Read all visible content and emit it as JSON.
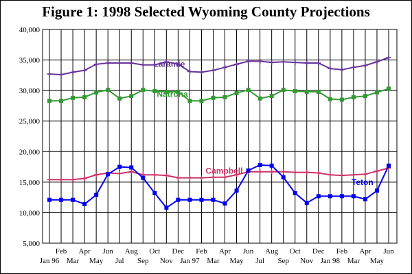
{
  "chart_data": {
    "type": "line",
    "title": "Figure 1:  1998 Selected Wyoming County Projections",
    "xlabel": "",
    "ylabel": "",
    "ylim": [
      5000,
      40000
    ],
    "yticks": [
      5000,
      10000,
      15000,
      20000,
      25000,
      30000,
      35000,
      40000
    ],
    "ytick_labels": [
      "5,000",
      "10,000",
      "15,000",
      "20,000",
      "25,000",
      "30,000",
      "35,000",
      "40,000"
    ],
    "grid": true,
    "x_tick_labels_lower": [
      "Jan 96",
      "Mar",
      "May",
      "Jul",
      "Sep",
      "Nov",
      "Jan 97",
      "Mar",
      "May",
      "Jul",
      "Sep",
      "Nov",
      "Jan 98",
      "Mar",
      "May"
    ],
    "x_tick_labels_upper": [
      "Feb",
      "Apr",
      "Jun",
      "Aug",
      "Oct",
      "Dec",
      "Feb",
      "Apr",
      "Jun",
      "Aug",
      "Oct",
      "Dec",
      "Feb",
      "Apr",
      "Jun"
    ],
    "x": [
      "Jan 96",
      "Feb",
      "Mar",
      "Apr",
      "May",
      "Jun",
      "Jul",
      "Aug",
      "Sep",
      "Oct",
      "Nov",
      "Dec",
      "Jan 97",
      "Feb",
      "Mar",
      "Apr",
      "May",
      "Jun",
      "Jul",
      "Aug",
      "Sep",
      "Oct",
      "Nov",
      "Dec",
      "Jan 98",
      "Feb",
      "Mar",
      "Apr",
      "May",
      "Jun"
    ],
    "series": [
      {
        "name": "Laramie",
        "color": "#663399",
        "marker": "plus",
        "values": [
          32700,
          32600,
          33000,
          33300,
          34300,
          34500,
          34500,
          34500,
          34200,
          34200,
          34700,
          34300,
          33100,
          33000,
          33300,
          33800,
          34300,
          34800,
          34800,
          34600,
          34700,
          34600,
          34500,
          34500,
          33600,
          33400,
          33800,
          34100,
          34700,
          35400
        ]
      },
      {
        "name": "Natrona",
        "color": "#339933",
        "marker": "square",
        "values": [
          28300,
          28300,
          28800,
          28900,
          29700,
          30100,
          28700,
          29100,
          30100,
          29900,
          29800,
          29800,
          28300,
          28300,
          28800,
          28900,
          29600,
          30100,
          28700,
          29100,
          30100,
          29900,
          29800,
          29800,
          28600,
          28500,
          28900,
          29100,
          29700,
          30300
        ]
      },
      {
        "name": "Campbell",
        "color": "#cc3366",
        "marker": "plus",
        "values": [
          15400,
          15400,
          15400,
          15600,
          16200,
          16500,
          16400,
          16700,
          16200,
          16200,
          16100,
          15700,
          15700,
          15700,
          15800,
          15800,
          16200,
          16700,
          16700,
          16700,
          16700,
          16600,
          16600,
          16500,
          16200,
          16100,
          16200,
          16300,
          16800,
          17300
        ]
      },
      {
        "name": "Teton",
        "color": "#0000ee",
        "marker": "square",
        "values": [
          12100,
          12100,
          12100,
          11400,
          12900,
          16300,
          17500,
          17400,
          15700,
          13200,
          10800,
          12100,
          12100,
          12100,
          12100,
          11500,
          13600,
          16900,
          17800,
          17700,
          15800,
          13200,
          11600,
          12700,
          12700,
          12700,
          12700,
          12200,
          13600,
          17700
        ]
      }
    ]
  }
}
